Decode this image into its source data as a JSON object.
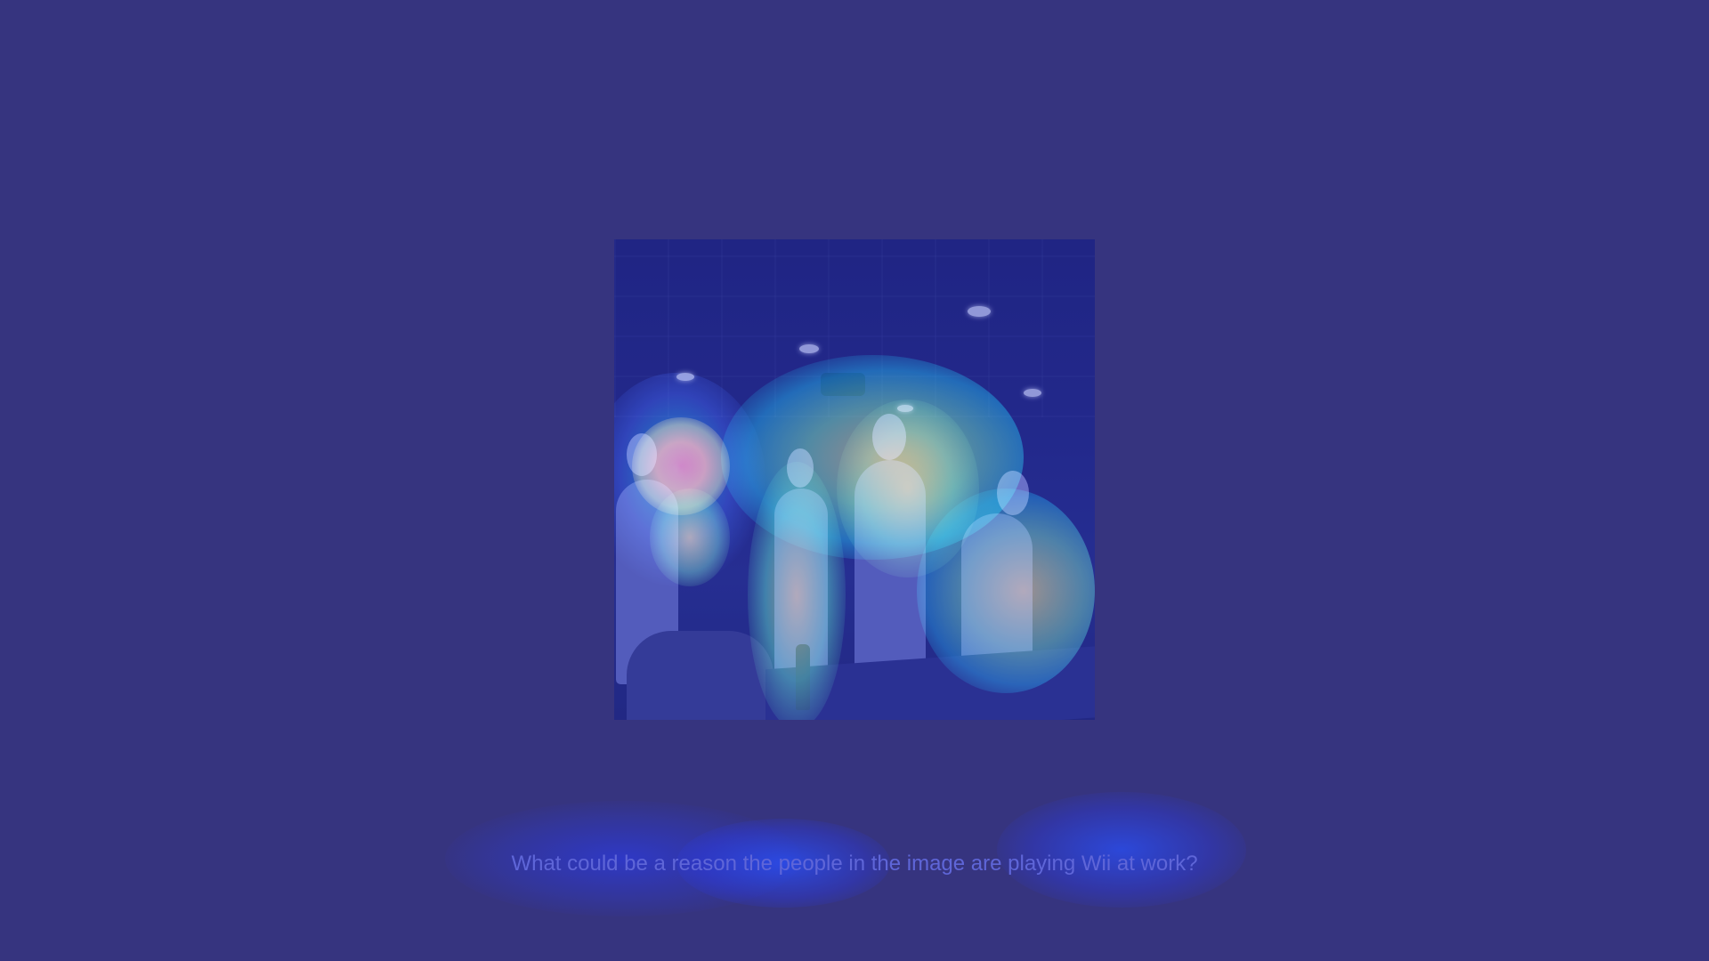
{
  "image": {
    "icon": "photo-icon"
  },
  "caption": {
    "text": "What could be a reason the people in the image are playing Wii at work?"
  },
  "colors": {
    "background": "#36347f",
    "caption_text": "#5f66d8",
    "heat_low": "#2b3cff",
    "heat_mid": "#00e0ff",
    "heat_high": "#ffe000",
    "heat_peak": "#d00000"
  }
}
